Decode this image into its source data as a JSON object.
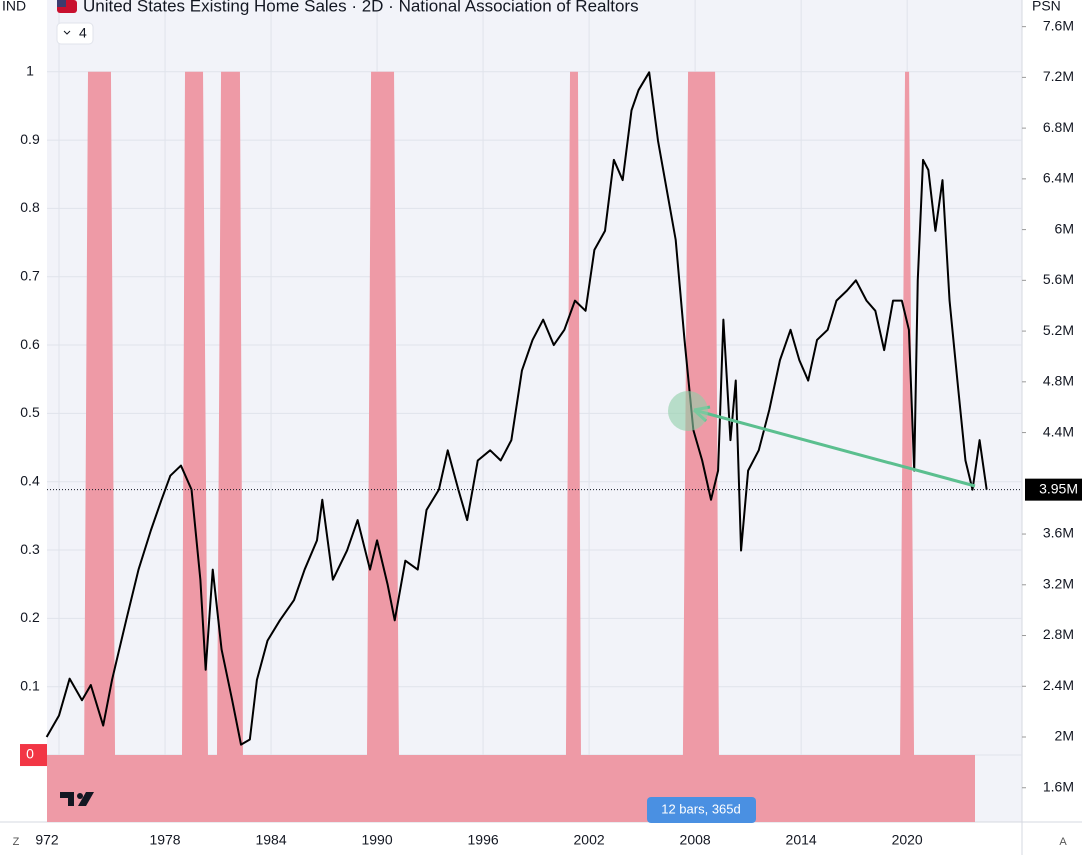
{
  "header": {
    "left_axis": "IND",
    "title": "United States Existing Home Sales · 2D · National Association of Realtors",
    "collapse": "4",
    "right_axis": "PSN"
  },
  "badge": "12 bars, 365d",
  "corners": {
    "left": "Z",
    "right": "A"
  },
  "chart_data": {
    "type": "line",
    "xlim": [
      1971.32,
      2026.5
    ],
    "xticks": [
      {
        "value": 1972,
        "label": "972"
      },
      1978,
      1984,
      1990,
      1996,
      2002,
      2008,
      2014,
      2020
    ],
    "ylim": [
      -0.098,
      1.105
    ],
    "yticks": [
      0,
      0.1,
      0.2,
      0.3,
      0.4,
      0.5,
      0.6,
      0.7,
      0.8,
      0.9,
      1
    ],
    "y2lim": [
      1.33,
      7.81
    ],
    "y2ticks": [
      {
        "value": 1.6,
        "label": "1.6M"
      },
      {
        "value": 2,
        "label": "2M"
      },
      {
        "value": 2.4,
        "label": "2.4M"
      },
      {
        "value": 2.8,
        "label": "2.8M"
      },
      {
        "value": 3.2,
        "label": "3.2M"
      },
      {
        "value": 3.6,
        "label": "3.6M"
      },
      {
        "value": 4.4,
        "label": "4.4M"
      },
      {
        "value": 4.8,
        "label": "4.8M"
      },
      {
        "value": 5.2,
        "label": "5.2M"
      },
      {
        "value": 5.6,
        "label": "5.6M"
      },
      {
        "value": 6,
        "label": "6M"
      },
      {
        "value": 6.4,
        "label": "6.4M"
      },
      {
        "value": 6.8,
        "label": "6.8M"
      },
      {
        "value": 7.2,
        "label": "7.2M"
      },
      {
        "value": 7.6,
        "label": "7.6M"
      }
    ],
    "grid": true,
    "recession": {
      "color": "#ee9aa6",
      "x": [
        1971.32,
        1973.42,
        1973.64,
        1974.94,
        1975.17,
        1978.96,
        1979.13,
        1980.15,
        1980.43,
        1980.94,
        1981.17,
        1982.24,
        1982.41,
        1989.43,
        1989.66,
        1990.96,
        1991.24,
        2000.69,
        2000.92,
        2001.37,
        2001.54,
        2007.31,
        2007.6,
        2009.13,
        2009.35,
        2019.6,
        2019.88,
        2020.11,
        2020.39,
        2023.84
      ],
      "values": [
        0,
        0,
        1,
        1,
        0,
        0,
        1,
        1,
        0,
        0,
        1,
        1,
        0,
        0,
        1,
        1,
        0,
        0,
        1,
        1,
        0,
        0,
        1,
        1,
        0,
        0,
        1,
        1,
        0,
        0
      ]
    },
    "series": [
      {
        "axis": "y2",
        "color": "#000000",
        "x": [
          1971.3,
          1972.0,
          1972.6,
          1973.3,
          1973.8,
          1974.5,
          1975.0,
          1975.8,
          1976.5,
          1977.2,
          1977.8,
          1978.3,
          1978.9,
          1979.5,
          1980.0,
          1980.3,
          1980.7,
          1981.2,
          1981.8,
          1982.3,
          1982.8,
          1983.2,
          1983.8,
          1984.5,
          1985.3,
          1985.9,
          1986.6,
          1986.9,
          1987.5,
          1988.3,
          1988.9,
          1989.6,
          1990.0,
          1990.6,
          1991.0,
          1991.6,
          1992.3,
          1992.8,
          1993.5,
          1994.0,
          1994.6,
          1995.1,
          1995.7,
          1996.4,
          1997.0,
          1997.6,
          1998.2,
          1998.8,
          1999.4,
          2000.0,
          2000.6,
          2001.2,
          2001.8,
          2002.3,
          2002.9,
          2003.4,
          2003.9,
          2004.4,
          2004.8,
          2005.4,
          2005.9,
          2006.4,
          2006.9,
          2007.4,
          2007.9,
          2008.4,
          2008.9,
          2009.3,
          2009.6,
          2010.0,
          2010.3,
          2010.6,
          2011.0,
          2011.6,
          2012.2,
          2012.8,
          2013.4,
          2013.9,
          2014.4,
          2014.9,
          2015.5,
          2016.0,
          2016.6,
          2017.1,
          2017.7,
          2018.2,
          2018.7,
          2019.2,
          2019.7,
          2020.1,
          2020.4,
          2020.6,
          2020.9,
          2021.2,
          2021.6,
          2022.0,
          2022.4,
          2022.9,
          2023.3,
          2023.7,
          2024.1,
          2024.5
        ],
        "values": [
          2.0,
          2.17,
          2.46,
          2.29,
          2.41,
          2.09,
          2.45,
          2.92,
          3.32,
          3.63,
          3.87,
          4.06,
          4.14,
          3.95,
          3.24,
          2.53,
          3.32,
          2.69,
          2.29,
          1.94,
          1.98,
          2.45,
          2.76,
          2.92,
          3.08,
          3.32,
          3.55,
          3.87,
          3.24,
          3.47,
          3.71,
          3.32,
          3.55,
          3.2,
          2.92,
          3.39,
          3.32,
          3.79,
          3.95,
          4.26,
          3.95,
          3.71,
          4.18,
          4.26,
          4.18,
          4.34,
          4.89,
          5.13,
          5.29,
          5.09,
          5.21,
          5.44,
          5.36,
          5.84,
          5.99,
          6.55,
          6.39,
          6.94,
          7.1,
          7.24,
          6.7,
          6.31,
          5.92,
          5.13,
          4.42,
          4.18,
          3.87,
          4.1,
          5.29,
          4.34,
          4.81,
          3.47,
          4.1,
          4.26,
          4.58,
          4.97,
          5.21,
          4.97,
          4.81,
          5.13,
          5.21,
          5.44,
          5.52,
          5.6,
          5.44,
          5.36,
          5.05,
          5.44,
          5.44,
          5.21,
          4.1,
          5.6,
          6.55,
          6.47,
          5.99,
          6.39,
          5.44,
          4.73,
          4.18,
          3.95,
          4.34,
          3.95
        ]
      }
    ],
    "last_value_label": "3.95M"
  }
}
